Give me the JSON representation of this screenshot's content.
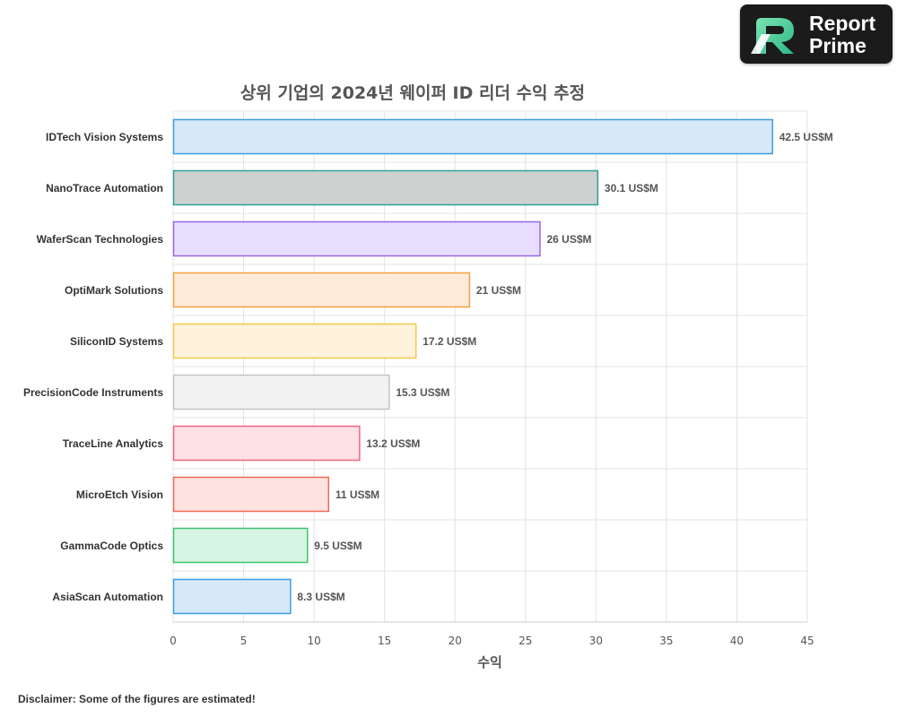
{
  "brand": {
    "line1": "Report",
    "line2": "Prime"
  },
  "disclaimer": "Disclaimer: Some of the figures are estimated!",
  "chart_data": {
    "type": "bar",
    "orientation": "horizontal",
    "title": "상위 기업의 2024년 웨이퍼 ID 리더 수익 추정",
    "xlabel": "수익",
    "ylabel": "",
    "xlim": [
      0,
      45
    ],
    "x_ticks": [
      0,
      5,
      10,
      15,
      20,
      25,
      30,
      35,
      40,
      45
    ],
    "grid": true,
    "value_suffix": " US$M",
    "categories": [
      "IDTech Vision Systems",
      "NanoTrace Automation",
      "WaferScan Technologies",
      "OptiMark Solutions",
      "SiliconID Systems",
      "PrecisionCode Instruments",
      "TraceLine Analytics",
      "MicroEtch Vision",
      "GammaCode Optics",
      "AsiaScan Automation"
    ],
    "values": [
      42.5,
      30.1,
      26,
      21,
      17.2,
      15.3,
      13.2,
      11,
      9.5,
      8.3
    ],
    "bar_colors": [
      {
        "fill": "#d6e9f8",
        "stroke": "#3d9de0"
      },
      {
        "fill": "#cfd0d0",
        "stroke": "#2aa198"
      },
      {
        "fill": "#e7defd",
        "stroke": "#9966ee"
      },
      {
        "fill": "#feead8",
        "stroke": "#f5a040"
      },
      {
        "fill": "#fff3dc",
        "stroke": "#f7c94a"
      },
      {
        "fill": "#f2f2f2",
        "stroke": "#c4c4c4"
      },
      {
        "fill": "#fde0e6",
        "stroke": "#f26480"
      },
      {
        "fill": "#fde2df",
        "stroke": "#ef6a55"
      },
      {
        "fill": "#d7f5e3",
        "stroke": "#3ac46e"
      },
      {
        "fill": "#d6e9f8",
        "stroke": "#3d9de0"
      }
    ]
  }
}
